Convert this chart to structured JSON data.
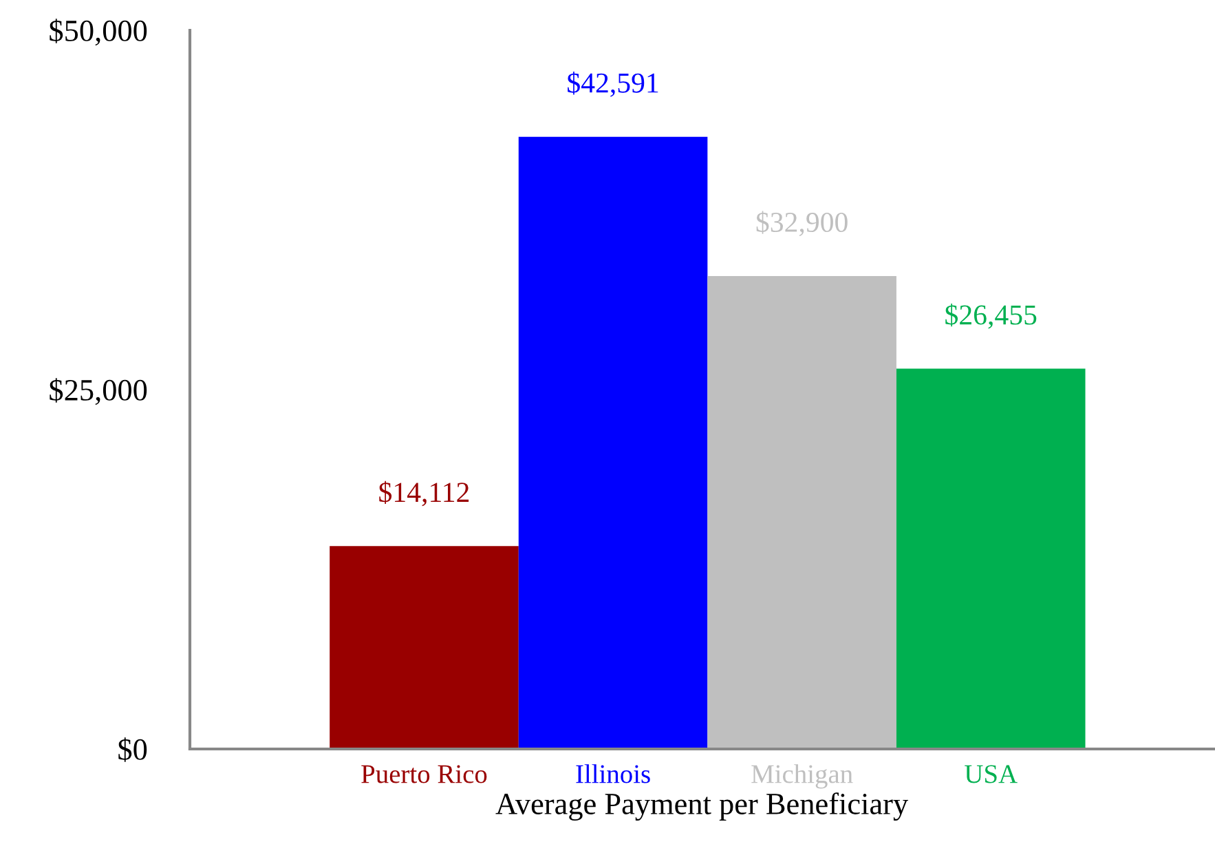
{
  "chart_data": {
    "type": "bar",
    "xlabel": "Average Payment per Beneficiary",
    "categories": [
      "Puerto Rico",
      "Illinois",
      "Michigan",
      "USA"
    ],
    "values": [
      14112,
      42591,
      32900,
      26455
    ],
    "colors": [
      "#990000",
      "#0000ff",
      "#bfbfbf",
      "#00b050"
    ],
    "value_labels": [
      "$14,112",
      "$42,591",
      "$32,900",
      "$26,455"
    ],
    "ylim": [
      0,
      50000
    ],
    "yticks": [
      {
        "value": 0,
        "label": "$0"
      },
      {
        "value": 25000,
        "label": "$25,000"
      },
      {
        "value": 50000,
        "label": "$50,000"
      }
    ],
    "grid": false,
    "legend": false
  }
}
